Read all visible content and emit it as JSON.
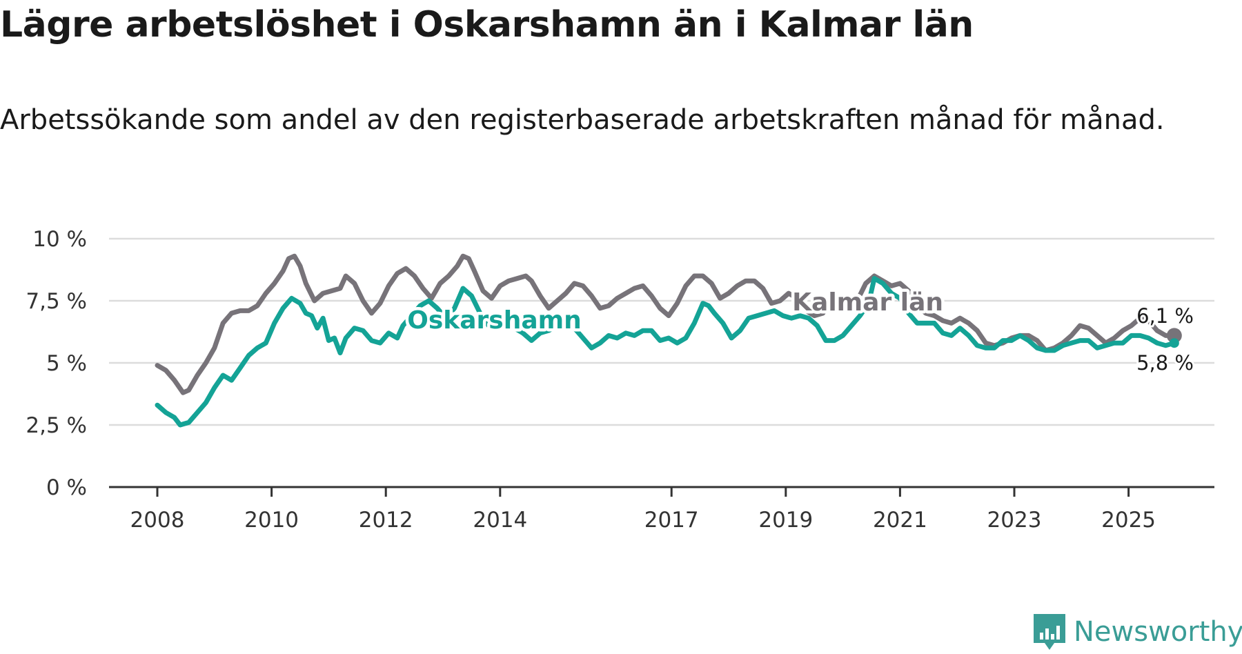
{
  "header": {
    "title": "Lägre arbetslöshet i Oskarshamn än i Kalmar län",
    "subtitle": "Arbetssökande som andel av den registerbaserade arbetskraften månad för månad."
  },
  "branding": {
    "name": "Newsworthy",
    "color": "#3a9d96"
  },
  "chart_data": {
    "type": "line",
    "title": "Lägre arbetslöshet i Oskarshamn än i Kalmar län",
    "subtitle": "Arbetssökande som andel av den registerbaserade arbetskraften månad för månad.",
    "xlabel": "",
    "ylabel": "",
    "xlim": [
      2008.0,
      2026.0
    ],
    "ylim": [
      0,
      10
    ],
    "grid": true,
    "y_ticks": [
      {
        "value": 0,
        "label": "0 %"
      },
      {
        "value": 2.5,
        "label": "2,5 %"
      },
      {
        "value": 5,
        "label": "5 %"
      },
      {
        "value": 7.5,
        "label": "7,5 %"
      },
      {
        "value": 10,
        "label": "10 %"
      }
    ],
    "x_ticks": [
      {
        "value": 2008,
        "label": "2008"
      },
      {
        "value": 2010,
        "label": "2010"
      },
      {
        "value": 2012,
        "label": "2012"
      },
      {
        "value": 2014,
        "label": "2014"
      },
      {
        "value": 2017,
        "label": "2017"
      },
      {
        "value": 2019,
        "label": "2019"
      },
      {
        "value": 2021,
        "label": "2021"
      },
      {
        "value": 2023,
        "label": "2023"
      },
      {
        "value": 2025,
        "label": "2025"
      }
    ],
    "series": [
      {
        "name": "Kalmar län",
        "color": "#777379",
        "end_label": "6,1 %",
        "points": [
          [
            2008.0,
            4.9
          ],
          [
            2008.15,
            4.7
          ],
          [
            2008.3,
            4.3
          ],
          [
            2008.45,
            3.8
          ],
          [
            2008.55,
            3.9
          ],
          [
            2008.7,
            4.5
          ],
          [
            2008.85,
            5.0
          ],
          [
            2009.0,
            5.6
          ],
          [
            2009.15,
            6.6
          ],
          [
            2009.3,
            7.0
          ],
          [
            2009.45,
            7.1
          ],
          [
            2009.6,
            7.1
          ],
          [
            2009.75,
            7.3
          ],
          [
            2009.9,
            7.8
          ],
          [
            2010.05,
            8.2
          ],
          [
            2010.2,
            8.7
          ],
          [
            2010.3,
            9.2
          ],
          [
            2010.4,
            9.3
          ],
          [
            2010.5,
            8.9
          ],
          [
            2010.6,
            8.2
          ],
          [
            2010.75,
            7.5
          ],
          [
            2010.9,
            7.8
          ],
          [
            2011.05,
            7.9
          ],
          [
            2011.2,
            8.0
          ],
          [
            2011.3,
            8.5
          ],
          [
            2011.45,
            8.2
          ],
          [
            2011.6,
            7.5
          ],
          [
            2011.75,
            7.0
          ],
          [
            2011.9,
            7.4
          ],
          [
            2012.05,
            8.1
          ],
          [
            2012.2,
            8.6
          ],
          [
            2012.35,
            8.8
          ],
          [
            2012.5,
            8.5
          ],
          [
            2012.65,
            8.0
          ],
          [
            2012.8,
            7.6
          ],
          [
            2012.95,
            8.2
          ],
          [
            2013.1,
            8.5
          ],
          [
            2013.25,
            8.9
          ],
          [
            2013.35,
            9.3
          ],
          [
            2013.45,
            9.2
          ],
          [
            2013.55,
            8.7
          ],
          [
            2013.7,
            7.9
          ],
          [
            2013.85,
            7.6
          ],
          [
            2014.0,
            8.1
          ],
          [
            2014.15,
            8.3
          ],
          [
            2014.3,
            8.4
          ],
          [
            2014.45,
            8.5
          ],
          [
            2014.55,
            8.3
          ],
          [
            2014.7,
            7.7
          ],
          [
            2014.85,
            7.2
          ],
          [
            2015.0,
            7.5
          ],
          [
            2015.15,
            7.8
          ],
          [
            2015.3,
            8.2
          ],
          [
            2015.45,
            8.1
          ],
          [
            2015.6,
            7.7
          ],
          [
            2015.75,
            7.2
          ],
          [
            2015.9,
            7.3
          ],
          [
            2016.05,
            7.6
          ],
          [
            2016.2,
            7.8
          ],
          [
            2016.35,
            8.0
          ],
          [
            2016.5,
            8.1
          ],
          [
            2016.65,
            7.7
          ],
          [
            2016.8,
            7.2
          ],
          [
            2016.95,
            6.9
          ],
          [
            2017.1,
            7.4
          ],
          [
            2017.25,
            8.1
          ],
          [
            2017.4,
            8.5
          ],
          [
            2017.55,
            8.5
          ],
          [
            2017.7,
            8.2
          ],
          [
            2017.85,
            7.6
          ],
          [
            2018.0,
            7.8
          ],
          [
            2018.15,
            8.1
          ],
          [
            2018.3,
            8.3
          ],
          [
            2018.45,
            8.3
          ],
          [
            2018.6,
            8.0
          ],
          [
            2018.75,
            7.4
          ],
          [
            2018.9,
            7.5
          ],
          [
            2019.05,
            7.8
          ],
          [
            2019.2,
            7.6
          ],
          [
            2019.35,
            7.1
          ],
          [
            2019.5,
            6.9
          ],
          [
            2019.65,
            7.0
          ],
          [
            2019.8,
            7.5
          ],
          [
            2019.95,
            7.6
          ],
          [
            2020.1,
            7.4
          ],
          [
            2020.25,
            7.5
          ],
          [
            2020.4,
            8.2
          ],
          [
            2020.55,
            8.5
          ],
          [
            2020.7,
            8.3
          ],
          [
            2020.85,
            8.1
          ],
          [
            2021.0,
            8.2
          ],
          [
            2021.15,
            7.9
          ],
          [
            2021.3,
            7.3
          ],
          [
            2021.45,
            7.0
          ],
          [
            2021.6,
            6.9
          ],
          [
            2021.75,
            6.7
          ],
          [
            2021.9,
            6.6
          ],
          [
            2022.05,
            6.8
          ],
          [
            2022.2,
            6.6
          ],
          [
            2022.35,
            6.3
          ],
          [
            2022.5,
            5.8
          ],
          [
            2022.65,
            5.7
          ],
          [
            2022.8,
            5.8
          ],
          [
            2022.95,
            6.0
          ],
          [
            2023.1,
            6.1
          ],
          [
            2023.25,
            6.1
          ],
          [
            2023.4,
            5.9
          ],
          [
            2023.55,
            5.5
          ],
          [
            2023.7,
            5.6
          ],
          [
            2023.85,
            5.8
          ],
          [
            2024.0,
            6.1
          ],
          [
            2024.15,
            6.5
          ],
          [
            2024.3,
            6.4
          ],
          [
            2024.45,
            6.1
          ],
          [
            2024.6,
            5.8
          ],
          [
            2024.75,
            6.0
          ],
          [
            2024.9,
            6.3
          ],
          [
            2025.05,
            6.5
          ],
          [
            2025.2,
            6.8
          ],
          [
            2025.35,
            6.7
          ],
          [
            2025.5,
            6.3
          ],
          [
            2025.65,
            6.1
          ],
          [
            2025.8,
            6.1
          ]
        ]
      },
      {
        "name": "Oskarshamn",
        "color": "#14a396",
        "end_label": "5,8 %",
        "points": [
          [
            2008.0,
            3.3
          ],
          [
            2008.15,
            3.0
          ],
          [
            2008.3,
            2.8
          ],
          [
            2008.4,
            2.5
          ],
          [
            2008.55,
            2.6
          ],
          [
            2008.7,
            3.0
          ],
          [
            2008.85,
            3.4
          ],
          [
            2009.0,
            4.0
          ],
          [
            2009.15,
            4.5
          ],
          [
            2009.3,
            4.3
          ],
          [
            2009.45,
            4.8
          ],
          [
            2009.6,
            5.3
          ],
          [
            2009.75,
            5.6
          ],
          [
            2009.9,
            5.8
          ],
          [
            2010.05,
            6.6
          ],
          [
            2010.2,
            7.2
          ],
          [
            2010.35,
            7.6
          ],
          [
            2010.5,
            7.4
          ],
          [
            2010.6,
            7.0
          ],
          [
            2010.7,
            6.9
          ],
          [
            2010.8,
            6.4
          ],
          [
            2010.9,
            6.8
          ],
          [
            2011.0,
            5.9
          ],
          [
            2011.1,
            6.0
          ],
          [
            2011.2,
            5.4
          ],
          [
            2011.3,
            6.0
          ],
          [
            2011.45,
            6.4
          ],
          [
            2011.6,
            6.3
          ],
          [
            2011.75,
            5.9
          ],
          [
            2011.9,
            5.8
          ],
          [
            2012.05,
            6.2
          ],
          [
            2012.2,
            6.0
          ],
          [
            2012.3,
            6.5
          ],
          [
            2012.45,
            6.9
          ],
          [
            2012.6,
            7.3
          ],
          [
            2012.75,
            7.5
          ],
          [
            2012.9,
            7.2
          ],
          [
            2013.05,
            6.8
          ],
          [
            2013.2,
            7.2
          ],
          [
            2013.35,
            8.0
          ],
          [
            2013.5,
            7.7
          ],
          [
            2013.65,
            7.0
          ],
          [
            2013.8,
            6.5
          ],
          [
            2013.95,
            6.4
          ],
          [
            2014.1,
            6.5
          ],
          [
            2014.25,
            6.4
          ],
          [
            2014.4,
            6.2
          ],
          [
            2014.55,
            5.9
          ],
          [
            2014.7,
            6.2
          ],
          [
            2014.85,
            6.3
          ],
          [
            2015.0,
            6.5
          ],
          [
            2015.15,
            6.6
          ],
          [
            2015.3,
            6.4
          ],
          [
            2015.45,
            6.0
          ],
          [
            2015.6,
            5.6
          ],
          [
            2015.75,
            5.8
          ],
          [
            2015.9,
            6.1
          ],
          [
            2016.05,
            6.0
          ],
          [
            2016.2,
            6.2
          ],
          [
            2016.35,
            6.1
          ],
          [
            2016.5,
            6.3
          ],
          [
            2016.65,
            6.3
          ],
          [
            2016.8,
            5.9
          ],
          [
            2016.95,
            6.0
          ],
          [
            2017.1,
            5.8
          ],
          [
            2017.25,
            6.0
          ],
          [
            2017.4,
            6.6
          ],
          [
            2017.55,
            7.4
          ],
          [
            2017.65,
            7.3
          ],
          [
            2017.75,
            7.0
          ],
          [
            2017.9,
            6.6
          ],
          [
            2018.05,
            6.0
          ],
          [
            2018.2,
            6.3
          ],
          [
            2018.35,
            6.8
          ],
          [
            2018.5,
            6.9
          ],
          [
            2018.65,
            7.0
          ],
          [
            2018.8,
            7.1
          ],
          [
            2018.95,
            6.9
          ],
          [
            2019.1,
            6.8
          ],
          [
            2019.25,
            6.9
          ],
          [
            2019.4,
            6.8
          ],
          [
            2019.55,
            6.5
          ],
          [
            2019.7,
            5.9
          ],
          [
            2019.85,
            5.9
          ],
          [
            2020.0,
            6.1
          ],
          [
            2020.15,
            6.5
          ],
          [
            2020.3,
            6.9
          ],
          [
            2020.45,
            7.4
          ],
          [
            2020.55,
            8.4
          ],
          [
            2020.7,
            8.2
          ],
          [
            2020.85,
            7.8
          ],
          [
            2021.0,
            7.6
          ],
          [
            2021.15,
            7.0
          ],
          [
            2021.3,
            6.6
          ],
          [
            2021.45,
            6.6
          ],
          [
            2021.6,
            6.6
          ],
          [
            2021.75,
            6.2
          ],
          [
            2021.9,
            6.1
          ],
          [
            2022.05,
            6.4
          ],
          [
            2022.2,
            6.1
          ],
          [
            2022.35,
            5.7
          ],
          [
            2022.5,
            5.6
          ],
          [
            2022.65,
            5.6
          ],
          [
            2022.8,
            5.9
          ],
          [
            2022.95,
            5.9
          ],
          [
            2023.1,
            6.1
          ],
          [
            2023.25,
            5.9
          ],
          [
            2023.4,
            5.6
          ],
          [
            2023.55,
            5.5
          ],
          [
            2023.7,
            5.5
          ],
          [
            2023.85,
            5.7
          ],
          [
            2024.0,
            5.8
          ],
          [
            2024.15,
            5.9
          ],
          [
            2024.3,
            5.9
          ],
          [
            2024.45,
            5.6
          ],
          [
            2024.6,
            5.7
          ],
          [
            2024.75,
            5.8
          ],
          [
            2024.9,
            5.8
          ],
          [
            2025.05,
            6.1
          ],
          [
            2025.2,
            6.1
          ],
          [
            2025.35,
            6.0
          ],
          [
            2025.5,
            5.8
          ],
          [
            2025.65,
            5.7
          ],
          [
            2025.8,
            5.8
          ]
        ]
      }
    ],
    "annotations": [
      {
        "text": "Oskarshamn",
        "series": "Oskarshamn",
        "x": 2013.9,
        "y": 6.8
      },
      {
        "text": "Kalmar län",
        "series": "Kalmar län",
        "x": 2020.0,
        "y": 7.5
      }
    ]
  }
}
